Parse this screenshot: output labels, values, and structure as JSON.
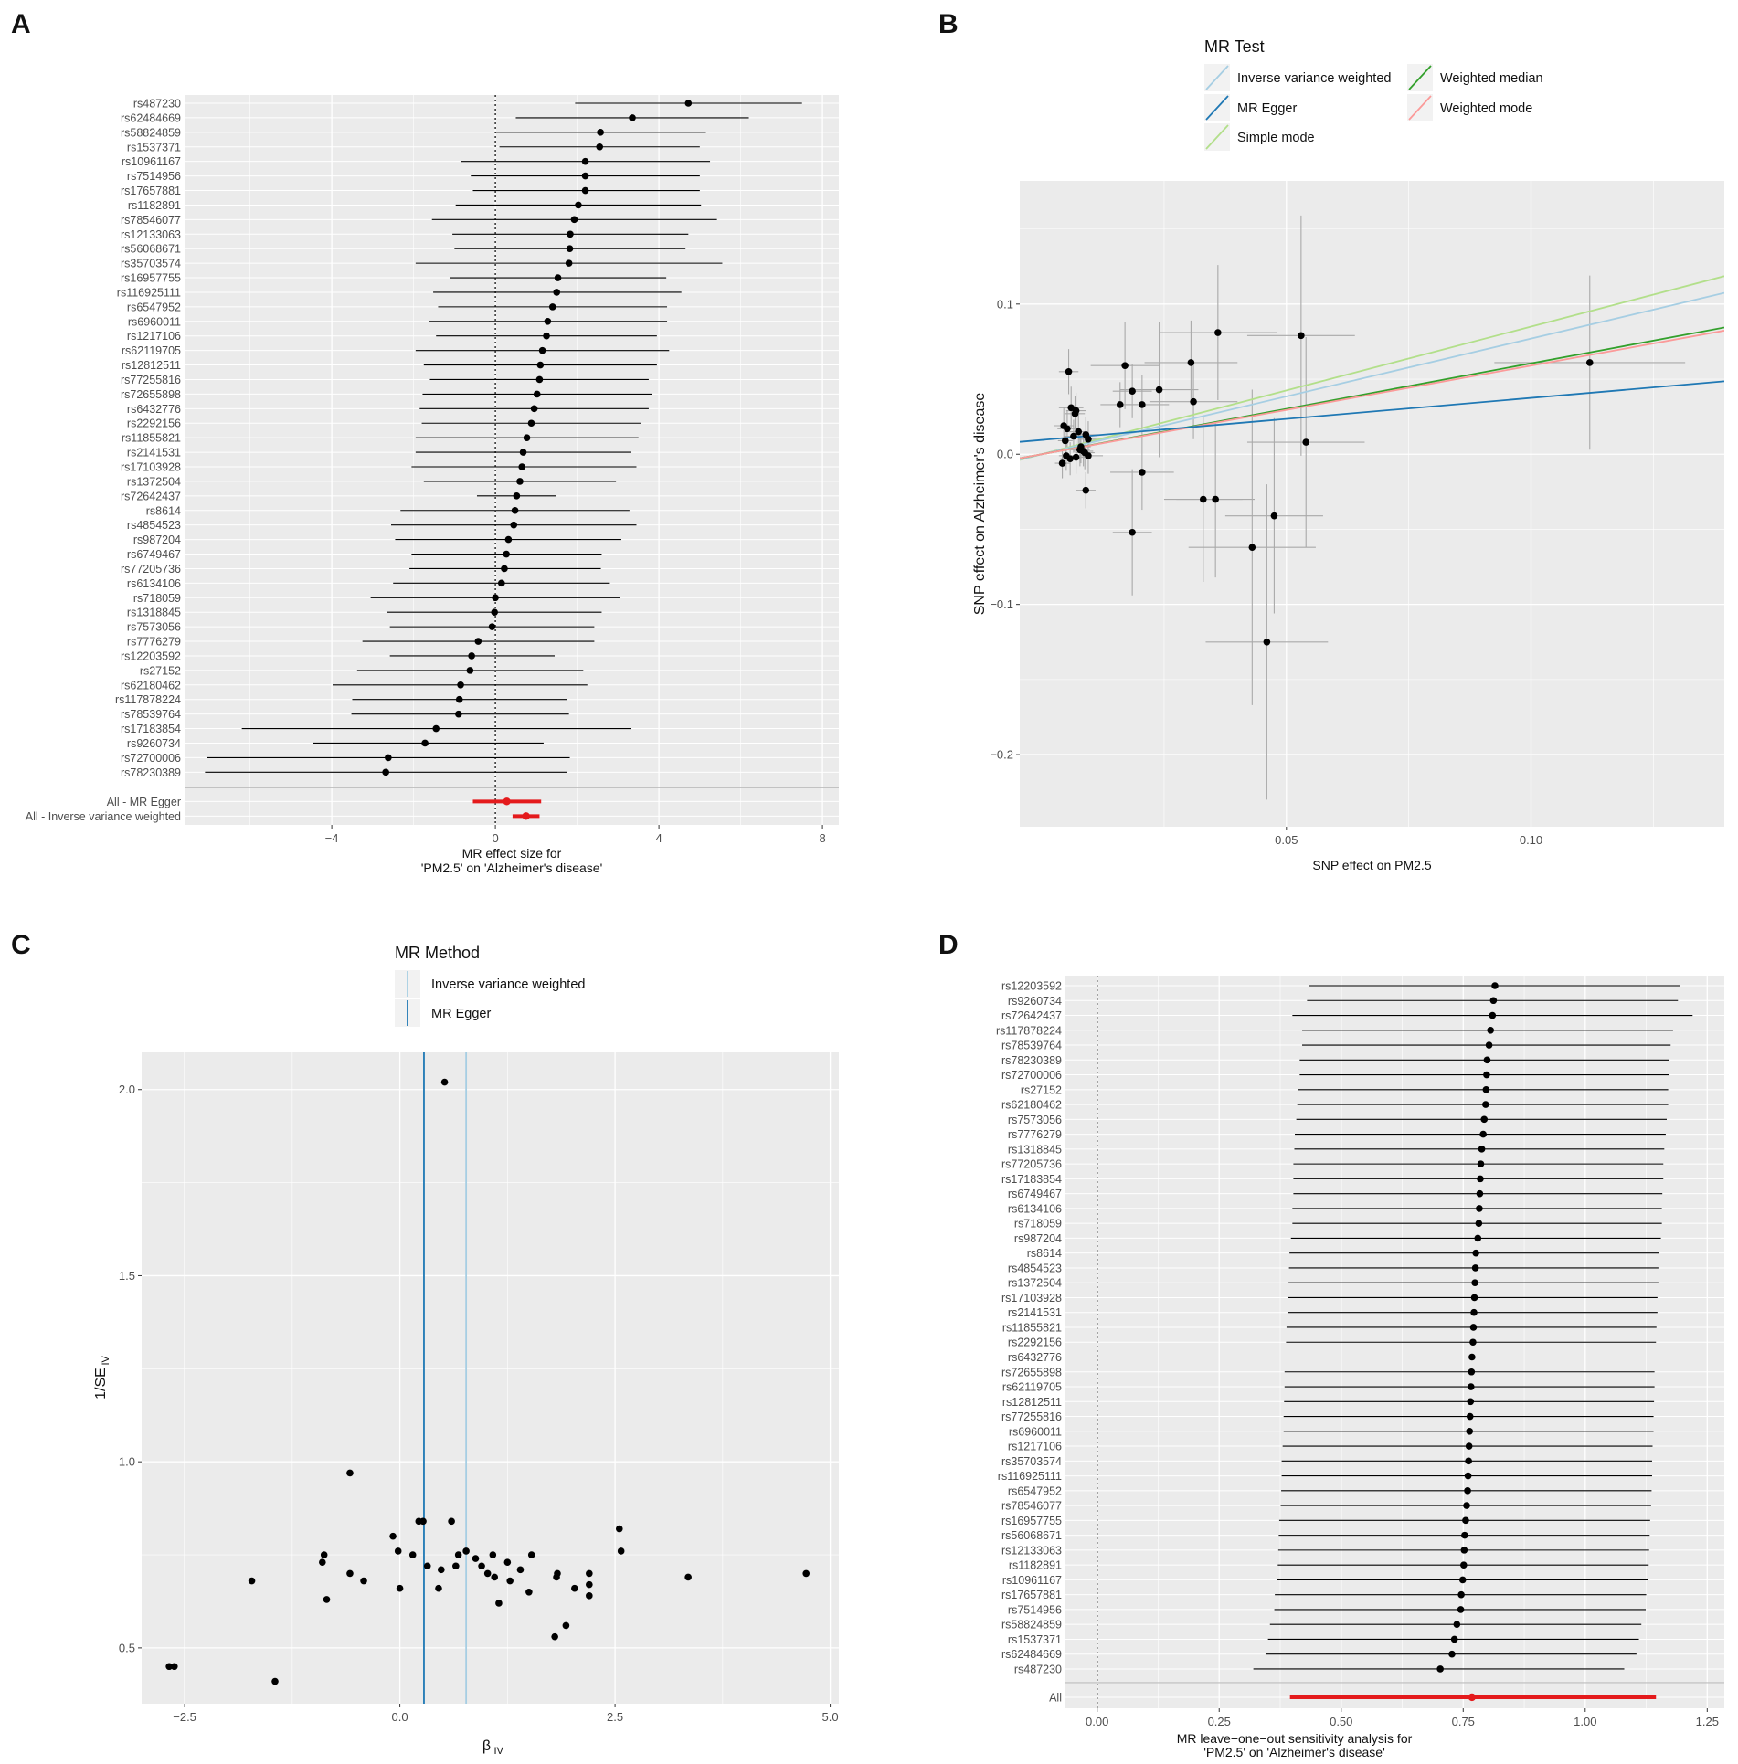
{
  "colors": {
    "panel_bg": "#ebebeb",
    "grid": "#ffffff",
    "point": "#000000",
    "summary": "#e41a1c",
    "ivw": "#a6cee3",
    "egger": "#1f78b4",
    "simple_mode": "#b2df8a",
    "weighted_median": "#33a02c",
    "weighted_mode": "#fb9a99",
    "scatter_errorbar": "#a9a9a9"
  },
  "chart_data": [
    {
      "panel": "A",
      "type": "forest",
      "snps": [
        "rs487230",
        "rs62484669",
        "rs58824859",
        "rs1537371",
        "rs10961167",
        "rs7514956",
        "rs17657881",
        "rs1182891",
        "rs78546077",
        "rs12133063",
        "rs56068671",
        "rs35703574",
        "rs16957755",
        "rs116925111",
        "rs6547952",
        "rs6960011",
        "rs1217106",
        "rs62119705",
        "rs12812511",
        "rs77255816",
        "rs72655898",
        "rs6432776",
        "rs2292156",
        "rs11855821",
        "rs2141531",
        "rs17103928",
        "rs1372504",
        "rs72642437",
        "rs8614",
        "rs4854523",
        "rs987204",
        "rs6749467",
        "rs77205736",
        "rs6134106",
        "rs718059",
        "rs1318845",
        "rs7573056",
        "rs7776279",
        "rs12203592",
        "rs27152",
        "rs62180462",
        "rs117878224",
        "rs78539764",
        "rs17183854",
        "rs9260734",
        "rs72700006",
        "rs78230389"
      ],
      "estimates": [
        4.72,
        3.35,
        2.57,
        2.55,
        2.2,
        2.2,
        2.2,
        2.03,
        1.93,
        1.83,
        1.82,
        1.8,
        1.53,
        1.5,
        1.4,
        1.28,
        1.25,
        1.15,
        1.1,
        1.08,
        1.02,
        0.95,
        0.88,
        0.77,
        0.68,
        0.65,
        0.6,
        0.52,
        0.48,
        0.45,
        0.32,
        0.27,
        0.22,
        0.15,
        0.0,
        -0.02,
        -0.08,
        -0.42,
        -0.58,
        -0.62,
        -0.85,
        -0.88,
        -0.9,
        -1.45,
        -1.72,
        -2.62,
        -2.68
      ],
      "lower": [
        1.95,
        0.5,
        0.0,
        0.1,
        -0.85,
        -0.6,
        -0.55,
        -0.97,
        -1.55,
        -1.05,
        -1.0,
        -1.95,
        -1.1,
        -1.52,
        -1.4,
        -1.62,
        -1.45,
        -1.95,
        -1.75,
        -1.6,
        -1.78,
        -1.85,
        -1.8,
        -1.95,
        -1.95,
        -2.05,
        -1.75,
        -0.45,
        -2.32,
        -2.55,
        -2.45,
        -2.05,
        -2.1,
        -2.5,
        -3.05,
        -2.65,
        -2.58,
        -3.25,
        -2.58,
        -3.38,
        -3.98,
        -3.5,
        -3.52,
        -6.2,
        -4.45,
        -7.05,
        -7.1
      ],
      "upper": [
        7.5,
        6.2,
        5.15,
        5.0,
        5.25,
        5.0,
        5.0,
        5.03,
        5.42,
        4.72,
        4.65,
        5.55,
        4.18,
        4.55,
        4.2,
        4.2,
        3.95,
        4.25,
        3.95,
        3.75,
        3.82,
        3.75,
        3.55,
        3.5,
        3.32,
        3.45,
        2.95,
        1.48,
        3.28,
        3.45,
        3.08,
        2.6,
        2.58,
        2.8,
        3.05,
        2.6,
        2.42,
        2.42,
        1.45,
        2.15,
        2.25,
        1.75,
        1.8,
        3.32,
        1.18,
        1.82,
        1.75
      ],
      "summary_labels": [
        "All - MR Egger",
        "All - Inverse variance weighted"
      ],
      "summary_estimates": [
        0.28,
        0.75
      ],
      "summary_lower": [
        -0.55,
        0.42
      ],
      "summary_upper": [
        1.12,
        1.08
      ],
      "xlim": [
        -7.6,
        8.4
      ],
      "xticks": [
        -4,
        0,
        4,
        8
      ],
      "xtick_labels": [
        "−4",
        "0",
        "4",
        "8"
      ],
      "xlabel": [
        "MR effect size for",
        "'PM2.5' on 'Alzheimer's disease'"
      ]
    },
    {
      "panel": "B",
      "type": "scatter",
      "xlabel": "SNP effect on PM2.5",
      "ylabel": "SNP effect on Alzheimer's disease",
      "xlim": [
        -0.0045,
        0.1395
      ],
      "ylim": [
        -0.248,
        0.182
      ],
      "xticks": [
        0.05,
        0.1
      ],
      "xtick_labels": [
        "0.05",
        "0.10"
      ],
      "yticks": [
        0.1,
        0.0,
        -0.1,
        -0.2
      ],
      "ytick_labels": [
        "0.1",
        "0.0",
        "−0.1",
        "−0.2"
      ],
      "legend_title": "MR Test",
      "legend_entries": [
        "Inverse variance weighted",
        "MR Egger",
        "Simple mode",
        "Weighted median",
        "Weighted mode"
      ],
      "lines": [
        {
          "name": "Inverse variance weighted",
          "intercept": 0.0,
          "slope": 0.77
        },
        {
          "name": "MR Egger",
          "intercept": 0.0095,
          "slope": 0.28
        },
        {
          "name": "Simple mode",
          "intercept": 0.0,
          "slope": 0.85
        },
        {
          "name": "Weighted median",
          "intercept": 0.0,
          "slope": 0.605
        },
        {
          "name": "Weighted mode",
          "intercept": 0.0,
          "slope": 0.59
        }
      ],
      "points": {
        "x": [
          0.0045,
          0.0055,
          0.006,
          0.007,
          0.0065,
          0.0048,
          0.0052,
          0.0075,
          0.0085,
          0.009,
          0.0078,
          0.008,
          0.0095,
          0.007,
          0.009,
          0.0042,
          0.0058,
          0.0068,
          0.0088,
          0.005,
          0.017,
          0.0185,
          0.016,
          0.0205,
          0.024,
          0.0305,
          0.031,
          0.036,
          0.053,
          0.0095,
          0.0205,
          0.0185,
          0.0355,
          0.033,
          0.054,
          0.0475,
          0.043,
          0.046,
          0.112
        ],
        "y": [
          0.019,
          0.055,
          0.031,
          0.029,
          0.012,
          0.009,
          0.017,
          0.015,
          0.002,
          0.013,
          0.003,
          0.005,
          0.01,
          -0.002,
          -0.024,
          -0.006,
          -0.003,
          0.027,
          0.001,
          -0.001,
          0.059,
          0.042,
          0.033,
          0.033,
          0.043,
          0.061,
          0.035,
          0.081,
          0.079,
          -0.001,
          -0.012,
          -0.052,
          -0.03,
          -0.03,
          0.008,
          -0.041,
          -0.062,
          -0.125,
          0.061
        ],
        "xerr": [
          0.002,
          0.002,
          0.0025,
          0.002,
          0.002,
          0.0015,
          0.002,
          0.002,
          0.002,
          0.0025,
          0.002,
          0.002,
          0.002,
          0.002,
          0.002,
          0.0015,
          0.002,
          0.002,
          0.002,
          0.0015,
          0.007,
          0.004,
          0.004,
          0.0055,
          0.008,
          0.0095,
          0.009,
          0.012,
          0.011,
          0.003,
          0.0065,
          0.004,
          0.008,
          0.008,
          0.012,
          0.01,
          0.013,
          0.0125,
          0.0195
        ],
        "yerr": [
          0.012,
          0.015,
          0.014,
          0.012,
          0.011,
          0.01,
          0.012,
          0.012,
          0.01,
          0.012,
          0.011,
          0.011,
          0.012,
          0.011,
          0.012,
          0.01,
          0.011,
          0.012,
          0.011,
          0.01,
          0.029,
          0.018,
          0.015,
          0.02,
          0.045,
          0.028,
          0.025,
          0.045,
          0.08,
          0.012,
          0.025,
          0.042,
          0.052,
          0.055,
          0.07,
          0.065,
          0.105,
          0.105,
          0.058
        ]
      }
    },
    {
      "panel": "C",
      "type": "funnel",
      "xlabel": "β",
      "xlabel_sub": "IV",
      "ylabel": "1/SE",
      "ylabel_sub": "IV",
      "xlim": [
        -3.0,
        5.1
      ],
      "ylim": [
        0.35,
        2.1
      ],
      "xticks": [
        -2.5,
        0.0,
        2.5,
        5.0
      ],
      "xtick_labels": [
        "−2.5",
        "0.0",
        "2.5",
        "5.0"
      ],
      "yticks": [
        0.5,
        1.0,
        1.5,
        2.0
      ],
      "ytick_labels": [
        "0.5",
        "1.0",
        "1.5",
        "2.0"
      ],
      "legend_title": "MR Method",
      "legend_entries": [
        "Inverse variance weighted",
        "MR Egger"
      ],
      "vlines": [
        {
          "name": "Inverse variance weighted",
          "x": 0.77
        },
        {
          "name": "MR Egger",
          "x": 0.28
        }
      ],
      "points": {
        "x": [
          -2.68,
          -2.62,
          -1.72,
          -1.45,
          -0.9,
          -0.88,
          -0.85,
          -0.58,
          -0.58,
          -0.42,
          -0.08,
          -0.02,
          0.0,
          0.15,
          0.22,
          0.27,
          0.32,
          0.45,
          0.48,
          0.52,
          0.6,
          0.65,
          0.68,
          0.77,
          0.88,
          0.95,
          1.02,
          1.08,
          1.1,
          1.15,
          1.25,
          1.28,
          1.4,
          1.5,
          1.53,
          1.8,
          1.82,
          1.83,
          1.93,
          2.03,
          2.2,
          2.2,
          2.2,
          2.55,
          2.57,
          3.35,
          4.72
        ],
        "y": [
          0.45,
          0.45,
          0.68,
          0.41,
          0.73,
          0.75,
          0.63,
          0.97,
          0.7,
          0.68,
          0.8,
          0.76,
          0.66,
          0.75,
          0.84,
          0.84,
          0.72,
          0.66,
          0.71,
          2.02,
          0.84,
          0.72,
          0.75,
          0.76,
          0.74,
          0.72,
          0.7,
          0.75,
          0.69,
          0.62,
          0.73,
          0.68,
          0.71,
          0.65,
          0.75,
          0.53,
          0.69,
          0.7,
          0.56,
          0.66,
          0.7,
          0.64,
          0.67,
          0.82,
          0.76,
          0.69,
          0.7
        ]
      }
    },
    {
      "panel": "D",
      "type": "leave-one-out",
      "snps": [
        "rs12203592",
        "rs9260734",
        "rs72642437",
        "rs117878224",
        "rs78539764",
        "rs78230389",
        "rs72700006",
        "rs27152",
        "rs62180462",
        "rs7573056",
        "rs7776279",
        "rs1318845",
        "rs77205736",
        "rs17183854",
        "rs6749467",
        "rs6134106",
        "rs718059",
        "rs987204",
        "rs8614",
        "rs4854523",
        "rs1372504",
        "rs17103928",
        "rs2141531",
        "rs11855821",
        "rs2292156",
        "rs6432776",
        "rs72655898",
        "rs62119705",
        "rs12812511",
        "rs77255816",
        "rs6960011",
        "rs1217106",
        "rs35703574",
        "rs116925111",
        "rs6547952",
        "rs78546077",
        "rs16957755",
        "rs56068671",
        "rs12133063",
        "rs1182891",
        "rs10961167",
        "rs17657881",
        "rs7514956",
        "rs58824859",
        "rs1537371",
        "rs62484669",
        "rs487230"
      ],
      "estimates": [
        0.815,
        0.812,
        0.81,
        0.806,
        0.803,
        0.799,
        0.798,
        0.797,
        0.796,
        0.793,
        0.791,
        0.788,
        0.786,
        0.785,
        0.784,
        0.783,
        0.782,
        0.78,
        0.776,
        0.775,
        0.774,
        0.773,
        0.772,
        0.771,
        0.77,
        0.768,
        0.767,
        0.766,
        0.765,
        0.764,
        0.763,
        0.762,
        0.761,
        0.76,
        0.759,
        0.757,
        0.755,
        0.753,
        0.752,
        0.751,
        0.749,
        0.746,
        0.745,
        0.737,
        0.732,
        0.727,
        0.703
      ],
      "lower": [
        0.435,
        0.43,
        0.4,
        0.42,
        0.42,
        0.415,
        0.415,
        0.412,
        0.41,
        0.408,
        0.405,
        0.404,
        0.402,
        0.402,
        0.402,
        0.4,
        0.4,
        0.397,
        0.394,
        0.393,
        0.392,
        0.39,
        0.39,
        0.388,
        0.387,
        0.385,
        0.384,
        0.384,
        0.383,
        0.382,
        0.382,
        0.38,
        0.378,
        0.378,
        0.377,
        0.376,
        0.373,
        0.372,
        0.371,
        0.37,
        0.368,
        0.364,
        0.363,
        0.354,
        0.35,
        0.345,
        0.32
      ],
      "upper": [
        1.195,
        1.19,
        1.22,
        1.18,
        1.175,
        1.172,
        1.172,
        1.17,
        1.17,
        1.167,
        1.165,
        1.162,
        1.16,
        1.16,
        1.158,
        1.157,
        1.157,
        1.155,
        1.152,
        1.15,
        1.15,
        1.148,
        1.148,
        1.146,
        1.145,
        1.143,
        1.142,
        1.142,
        1.141,
        1.14,
        1.14,
        1.138,
        1.137,
        1.137,
        1.136,
        1.135,
        1.133,
        1.132,
        1.131,
        1.13,
        1.128,
        1.125,
        1.124,
        1.115,
        1.11,
        1.105,
        1.08
      ],
      "summary_label": "All",
      "summary_estimate": 0.768,
      "summary_lower": 0.395,
      "summary_upper": 1.145,
      "xlim": [
        -0.065,
        1.285
      ],
      "xticks": [
        0.0,
        0.25,
        0.5,
        0.75,
        1.0,
        1.25
      ],
      "xtick_labels": [
        "0.00",
        "0.25",
        "0.50",
        "0.75",
        "1.00",
        "1.25"
      ],
      "xlabel": [
        "MR leave−one−out sensitivity analysis for",
        "'PM2.5' on 'Alzheimer's disease'"
      ]
    }
  ],
  "panel_labels": [
    "A",
    "B",
    "C",
    "D"
  ]
}
